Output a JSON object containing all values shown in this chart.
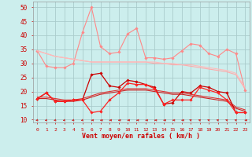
{
  "background_color": "#cceeed",
  "grid_color": "#aacccc",
  "x_labels": [
    "0",
    "1",
    "2",
    "3",
    "4",
    "5",
    "6",
    "7",
    "8",
    "9",
    "10",
    "11",
    "12",
    "13",
    "14",
    "15",
    "16",
    "17",
    "18",
    "19",
    "20",
    "21",
    "22",
    "23"
  ],
  "xlabel": "Vent moyen/en rafales ( km/h )",
  "ylim": [
    9,
    52
  ],
  "yticks": [
    10,
    15,
    20,
    25,
    30,
    35,
    40,
    45,
    50
  ],
  "series": [
    {
      "name": "rafales_max",
      "color": "#ff8888",
      "lw": 0.8,
      "marker": "D",
      "ms": 1.8,
      "values": [
        34.5,
        29.0,
        28.5,
        28.5,
        30.0,
        41.0,
        50.0,
        36.0,
        33.5,
        34.0,
        40.5,
        42.5,
        32.0,
        32.0,
        31.5,
        32.0,
        34.5,
        37.0,
        36.5,
        33.5,
        32.5,
        35.0,
        33.5,
        20.5
      ]
    },
    {
      "name": "rafales_smooth1",
      "color": "#ffaaaa",
      "lw": 0.8,
      "marker": null,
      "ms": 0,
      "values": [
        34.5,
        33.5,
        32.5,
        32.0,
        31.5,
        31.0,
        30.5,
        30.5,
        30.5,
        30.5,
        30.5,
        30.5,
        30.5,
        30.0,
        30.0,
        29.5,
        29.5,
        29.0,
        28.5,
        28.0,
        27.5,
        27.0,
        26.0,
        21.0
      ]
    },
    {
      "name": "rafales_smooth2",
      "color": "#ffbbbb",
      "lw": 0.8,
      "marker": null,
      "ms": 0,
      "values": [
        34.5,
        33.5,
        32.5,
        32.0,
        31.5,
        31.0,
        30.5,
        30.5,
        30.5,
        30.5,
        30.5,
        30.5,
        30.5,
        30.5,
        30.0,
        30.0,
        29.5,
        29.5,
        29.0,
        28.5,
        28.0,
        27.5,
        26.5,
        21.5
      ]
    },
    {
      "name": "vent_smooth1",
      "color": "#dd3333",
      "lw": 0.8,
      "marker": null,
      "ms": 0,
      "values": [
        18.0,
        18.0,
        17.5,
        17.0,
        17.0,
        17.5,
        18.5,
        19.5,
        20.0,
        20.5,
        21.0,
        21.0,
        21.0,
        20.5,
        20.0,
        19.5,
        19.5,
        19.0,
        18.5,
        18.0,
        17.5,
        17.0,
        14.5,
        13.5
      ]
    },
    {
      "name": "vent_smooth2",
      "color": "#cc2222",
      "lw": 0.8,
      "marker": null,
      "ms": 0,
      "values": [
        17.5,
        17.5,
        17.0,
        16.5,
        16.5,
        17.0,
        18.0,
        19.0,
        19.5,
        20.0,
        20.5,
        20.5,
        20.5,
        20.0,
        19.5,
        19.0,
        19.0,
        18.5,
        18.0,
        17.5,
        17.0,
        16.5,
        14.0,
        13.0
      ]
    },
    {
      "name": "vent_moyen_markers",
      "color": "#cc0000",
      "lw": 0.9,
      "marker": "D",
      "ms": 1.8,
      "values": [
        17.5,
        19.5,
        16.5,
        16.5,
        17.0,
        17.0,
        26.0,
        26.5,
        22.0,
        21.5,
        24.0,
        23.5,
        22.5,
        21.5,
        15.5,
        16.0,
        20.0,
        19.5,
        22.0,
        21.5,
        20.0,
        19.5,
        12.5,
        12.5
      ]
    },
    {
      "name": "vent_min_markers",
      "color": "#ff2222",
      "lw": 0.9,
      "marker": "D",
      "ms": 1.8,
      "values": [
        17.5,
        19.5,
        16.5,
        16.5,
        17.0,
        17.0,
        12.5,
        13.0,
        17.0,
        19.5,
        23.0,
        22.5,
        22.5,
        21.0,
        15.5,
        17.0,
        17.0,
        17.0,
        21.5,
        20.5,
        19.5,
        17.0,
        12.5,
        12.5
      ]
    }
  ],
  "wind_directions": [
    225,
    225,
    225,
    225,
    225,
    225,
    270,
    270,
    270,
    270,
    270,
    270,
    270,
    270,
    270,
    270,
    270,
    315,
    315,
    315,
    315,
    315,
    315,
    270
  ],
  "arrow_color": "#cc3333"
}
